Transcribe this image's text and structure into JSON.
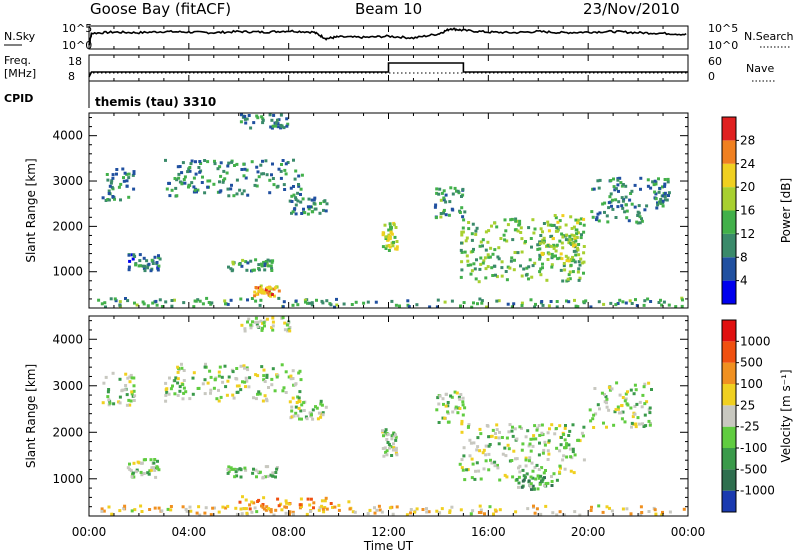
{
  "header": {
    "station": "Goose Bay (fitACF)",
    "beam": "Beam 10",
    "date": "23/Nov/2010"
  },
  "chart_data": [
    {
      "type": "line",
      "name": "noise",
      "left_label": "N.Sky",
      "left_ticks": [
        "10^5",
        "10^0"
      ],
      "right_label": "N.Search",
      "right_ticks": [
        "10^5",
        "10^0"
      ],
      "series": [
        {
          "name": "N.Sky",
          "style": "solid",
          "x": [
            0,
            0.1,
            1,
            2,
            3,
            4,
            5,
            6,
            7,
            8,
            9,
            9.5,
            10,
            11,
            12,
            13,
            14,
            14.5,
            15,
            16,
            17,
            18,
            19,
            20,
            21,
            22,
            23,
            24
          ],
          "y": [
            0.5,
            2.5,
            2.7,
            2.6,
            2.8,
            2.7,
            2.6,
            2.8,
            2.7,
            2.9,
            2.7,
            1.6,
            1.9,
            1.8,
            2.0,
            1.7,
            2.4,
            3.3,
            3.0,
            2.7,
            2.6,
            2.8,
            2.6,
            2.7,
            2.8,
            2.6,
            2.5,
            2.3
          ]
        },
        {
          "name": "N.Search",
          "style": "dotted",
          "x": [
            0,
            24
          ],
          "y": [
            0,
            0
          ]
        }
      ]
    },
    {
      "type": "line",
      "name": "frequency",
      "left_label": "Freq.",
      "left_unit": "[MHz]",
      "left_ticks": [
        18,
        8
      ],
      "right_label": "Nave",
      "right_ticks": [
        60,
        0
      ],
      "series": [
        {
          "name": "Freq.",
          "style": "solid",
          "x": [
            0,
            0.1,
            12,
            12,
            15,
            15,
            24
          ],
          "y": [
            8,
            10.5,
            10.5,
            15,
            15,
            10.5,
            10.5
          ]
        },
        {
          "name": "Nave",
          "style": "dotted",
          "x": [
            0,
            24
          ],
          "y": [
            17,
            17
          ]
        }
      ]
    },
    {
      "type": "text",
      "name": "cpid",
      "label": "CPID",
      "value": "themis (tau) 3310"
    },
    {
      "type": "heatmap",
      "name": "power",
      "ylabel": "Slant Range [km]",
      "ylim": [
        200,
        4500
      ],
      "yticks": [
        1000,
        2000,
        3000,
        4000
      ],
      "xlim": [
        0,
        24
      ],
      "colorbar": {
        "label": "Power [dB]",
        "ticks": [
          4,
          8,
          12,
          16,
          20,
          24,
          28
        ],
        "colors": [
          "#0000ee",
          "#2050a0",
          "#3a8a6a",
          "#42b04a",
          "#a8d030",
          "#f0d020",
          "#f08020",
          "#e02020"
        ]
      },
      "regions": [
        {
          "t0": 0.2,
          "t1": 23.9,
          "r0": 250,
          "r1": 450,
          "level": 0.35
        },
        {
          "t0": 6.5,
          "t1": 7.6,
          "r0": 450,
          "r1": 720,
          "level": 0.75
        },
        {
          "t0": 0.5,
          "t1": 1.8,
          "r0": 2600,
          "r1": 3300,
          "level": 0.3
        },
        {
          "t0": 1.5,
          "t1": 2.8,
          "r0": 1050,
          "r1": 1450,
          "level": 0.25
        },
        {
          "t0": 3.0,
          "t1": 8.5,
          "r0": 2700,
          "r1": 3500,
          "level": 0.3
        },
        {
          "t0": 8.0,
          "t1": 9.5,
          "r0": 2300,
          "r1": 2700,
          "level": 0.3
        },
        {
          "t0": 5.5,
          "t1": 7.5,
          "r0": 1050,
          "r1": 1300,
          "level": 0.35
        },
        {
          "t0": 6.0,
          "t1": 8.0,
          "r0": 4200,
          "r1": 4500,
          "level": 0.3
        },
        {
          "t0": 11.7,
          "t1": 12.3,
          "r0": 1500,
          "r1": 2100,
          "level": 0.55
        },
        {
          "t0": 13.8,
          "t1": 15.0,
          "r0": 2200,
          "r1": 2900,
          "level": 0.35
        },
        {
          "t0": 14.8,
          "t1": 19.8,
          "r0": 800,
          "r1": 2200,
          "level": 0.45
        },
        {
          "t0": 18.0,
          "t1": 19.8,
          "r0": 1200,
          "r1": 2300,
          "level": 0.55
        },
        {
          "t0": 20.0,
          "t1": 22.5,
          "r0": 2100,
          "r1": 3100,
          "level": 0.3
        },
        {
          "t0": 22.5,
          "t1": 23.2,
          "r0": 2400,
          "r1": 3100,
          "level": 0.3
        }
      ]
    },
    {
      "type": "heatmap",
      "name": "velocity",
      "ylabel": "Slant Range [km]",
      "ylim": [
        200,
        4500
      ],
      "yticks": [
        1000,
        2000,
        3000,
        4000
      ],
      "xlim": [
        0,
        24
      ],
      "xticks": [
        "00:00",
        "04:00",
        "08:00",
        "12:00",
        "16:00",
        "20:00",
        "00:00"
      ],
      "xlabel": "Time UT",
      "colorbar": {
        "label": "Velocity [m s⁻¹]",
        "ticks": [
          1000,
          500,
          100,
          25,
          -25,
          -100,
          -500,
          -1000
        ],
        "colors": [
          "#1a3ab0",
          "#2f6f4f",
          "#3a9a4a",
          "#60cc40",
          "#c8c8c0",
          "#f0d020",
          "#f09020",
          "#f05010",
          "#e01010"
        ]
      },
      "regions": [
        {
          "t0": 0.2,
          "t1": 23.9,
          "r0": 250,
          "r1": 450,
          "level": 0.6
        },
        {
          "t0": 5.8,
          "t1": 10.5,
          "r0": 350,
          "r1": 650,
          "level": 0.72
        },
        {
          "t0": 0.5,
          "t1": 1.8,
          "r0": 2600,
          "r1": 3300,
          "level": 0.45
        },
        {
          "t0": 1.5,
          "t1": 2.8,
          "r0": 1050,
          "r1": 1450,
          "level": 0.45
        },
        {
          "t0": 3.0,
          "t1": 8.5,
          "r0": 2700,
          "r1": 3500,
          "level": 0.45
        },
        {
          "t0": 8.0,
          "t1": 9.5,
          "r0": 2300,
          "r1": 2700,
          "level": 0.45
        },
        {
          "t0": 5.5,
          "t1": 7.5,
          "r0": 1050,
          "r1": 1300,
          "level": 0.38
        },
        {
          "t0": 6.0,
          "t1": 8.0,
          "r0": 4200,
          "r1": 4500,
          "level": 0.45
        },
        {
          "t0": 11.7,
          "t1": 12.3,
          "r0": 1500,
          "r1": 2100,
          "level": 0.45
        },
        {
          "t0": 13.8,
          "t1": 15.0,
          "r0": 2200,
          "r1": 2900,
          "level": 0.45
        },
        {
          "t0": 14.8,
          "t1": 19.8,
          "r0": 1000,
          "r1": 2200,
          "level": 0.45
        },
        {
          "t0": 17.0,
          "t1": 18.5,
          "r0": 800,
          "r1": 1100,
          "level": 0.3
        },
        {
          "t0": 20.0,
          "t1": 22.5,
          "r0": 2100,
          "r1": 3100,
          "level": 0.45
        }
      ]
    }
  ]
}
